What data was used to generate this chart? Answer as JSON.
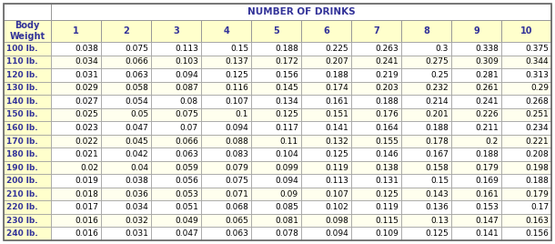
{
  "title": "NUMBER OF DRINKS",
  "col_headers": [
    "Body\nWeight",
    "1",
    "2",
    "3",
    "4",
    "5",
    "6",
    "7",
    "8",
    "9",
    "10"
  ],
  "rows": [
    [
      "100 lb.",
      "0.038",
      "0.075",
      "0.113",
      "0.15",
      "0.188",
      "0.225",
      "0.263",
      "0.3",
      "0.338",
      "0.375"
    ],
    [
      "110 lb.",
      "0.034",
      "0.066",
      "0.103",
      "0.137",
      "0.172",
      "0.207",
      "0.241",
      "0.275",
      "0.309",
      "0.344"
    ],
    [
      "120 lb.",
      "0.031",
      "0.063",
      "0.094",
      "0.125",
      "0.156",
      "0.188",
      "0.219",
      "0.25",
      "0.281",
      "0.313"
    ],
    [
      "130 lb.",
      "0.029",
      "0.058",
      "0.087",
      "0.116",
      "0.145",
      "0.174",
      "0.203",
      "0.232",
      "0.261",
      "0.29"
    ],
    [
      "140 lb.",
      "0.027",
      "0.054",
      "0.08",
      "0.107",
      "0.134",
      "0.161",
      "0.188",
      "0.214",
      "0.241",
      "0.268"
    ],
    [
      "150 lb.",
      "0.025",
      "0.05",
      "0.075",
      "0.1",
      "0.125",
      "0.151",
      "0.176",
      "0.201",
      "0.226",
      "0.251"
    ],
    [
      "160 lb.",
      "0.023",
      "0.047",
      "0.07",
      "0.094",
      "0.117",
      "0.141",
      "0.164",
      "0.188",
      "0.211",
      "0.234"
    ],
    [
      "170 lb.",
      "0.022",
      "0.045",
      "0.066",
      "0.088",
      "0.11",
      "0.132",
      "0.155",
      "0.178",
      "0.2",
      "0.221"
    ],
    [
      "180 lb.",
      "0.021",
      "0.042",
      "0.063",
      "0.083",
      "0.104",
      "0.125",
      "0.146",
      "0.167",
      "0.188",
      "0.208"
    ],
    [
      "190 lb.",
      "0.02",
      "0.04",
      "0.059",
      "0.079",
      "0.099",
      "0.119",
      "0.138",
      "0.158",
      "0.179",
      "0.198"
    ],
    [
      "200 lb.",
      "0.019",
      "0.038",
      "0.056",
      "0.075",
      "0.094",
      "0.113",
      "0.131",
      "0.15",
      "0.169",
      "0.188"
    ],
    [
      "210 lb.",
      "0.018",
      "0.036",
      "0.053",
      "0.071",
      "0.09",
      "0.107",
      "0.125",
      "0.143",
      "0.161",
      "0.179"
    ],
    [
      "220 lb.",
      "0.017",
      "0.034",
      "0.051",
      "0.068",
      "0.085",
      "0.102",
      "0.119",
      "0.136",
      "0.153",
      "0.17"
    ],
    [
      "230 lb.",
      "0.016",
      "0.032",
      "0.049",
      "0.065",
      "0.081",
      "0.098",
      "0.115",
      "0.13",
      "0.147",
      "0.163"
    ],
    [
      "240 lb.",
      "0.016",
      "0.031",
      "0.047",
      "0.063",
      "0.078",
      "0.094",
      "0.109",
      "0.125",
      "0.141",
      "0.156"
    ]
  ],
  "title_bg": "#FFFFFF",
  "title_color": "#333399",
  "header_bg": "#FFFFCC",
  "header_text_color": "#333399",
  "row_bg_even": "#FFFFFF",
  "row_bg_odd": "#FFFFEE",
  "body_weight_bg": "#FFFFCC",
  "border_color": "#999999",
  "data_text_color": "#000000",
  "outer_border_color": "#666666",
  "title_fontsize": 7.5,
  "header_fontsize": 7.0,
  "data_fontsize": 6.5
}
